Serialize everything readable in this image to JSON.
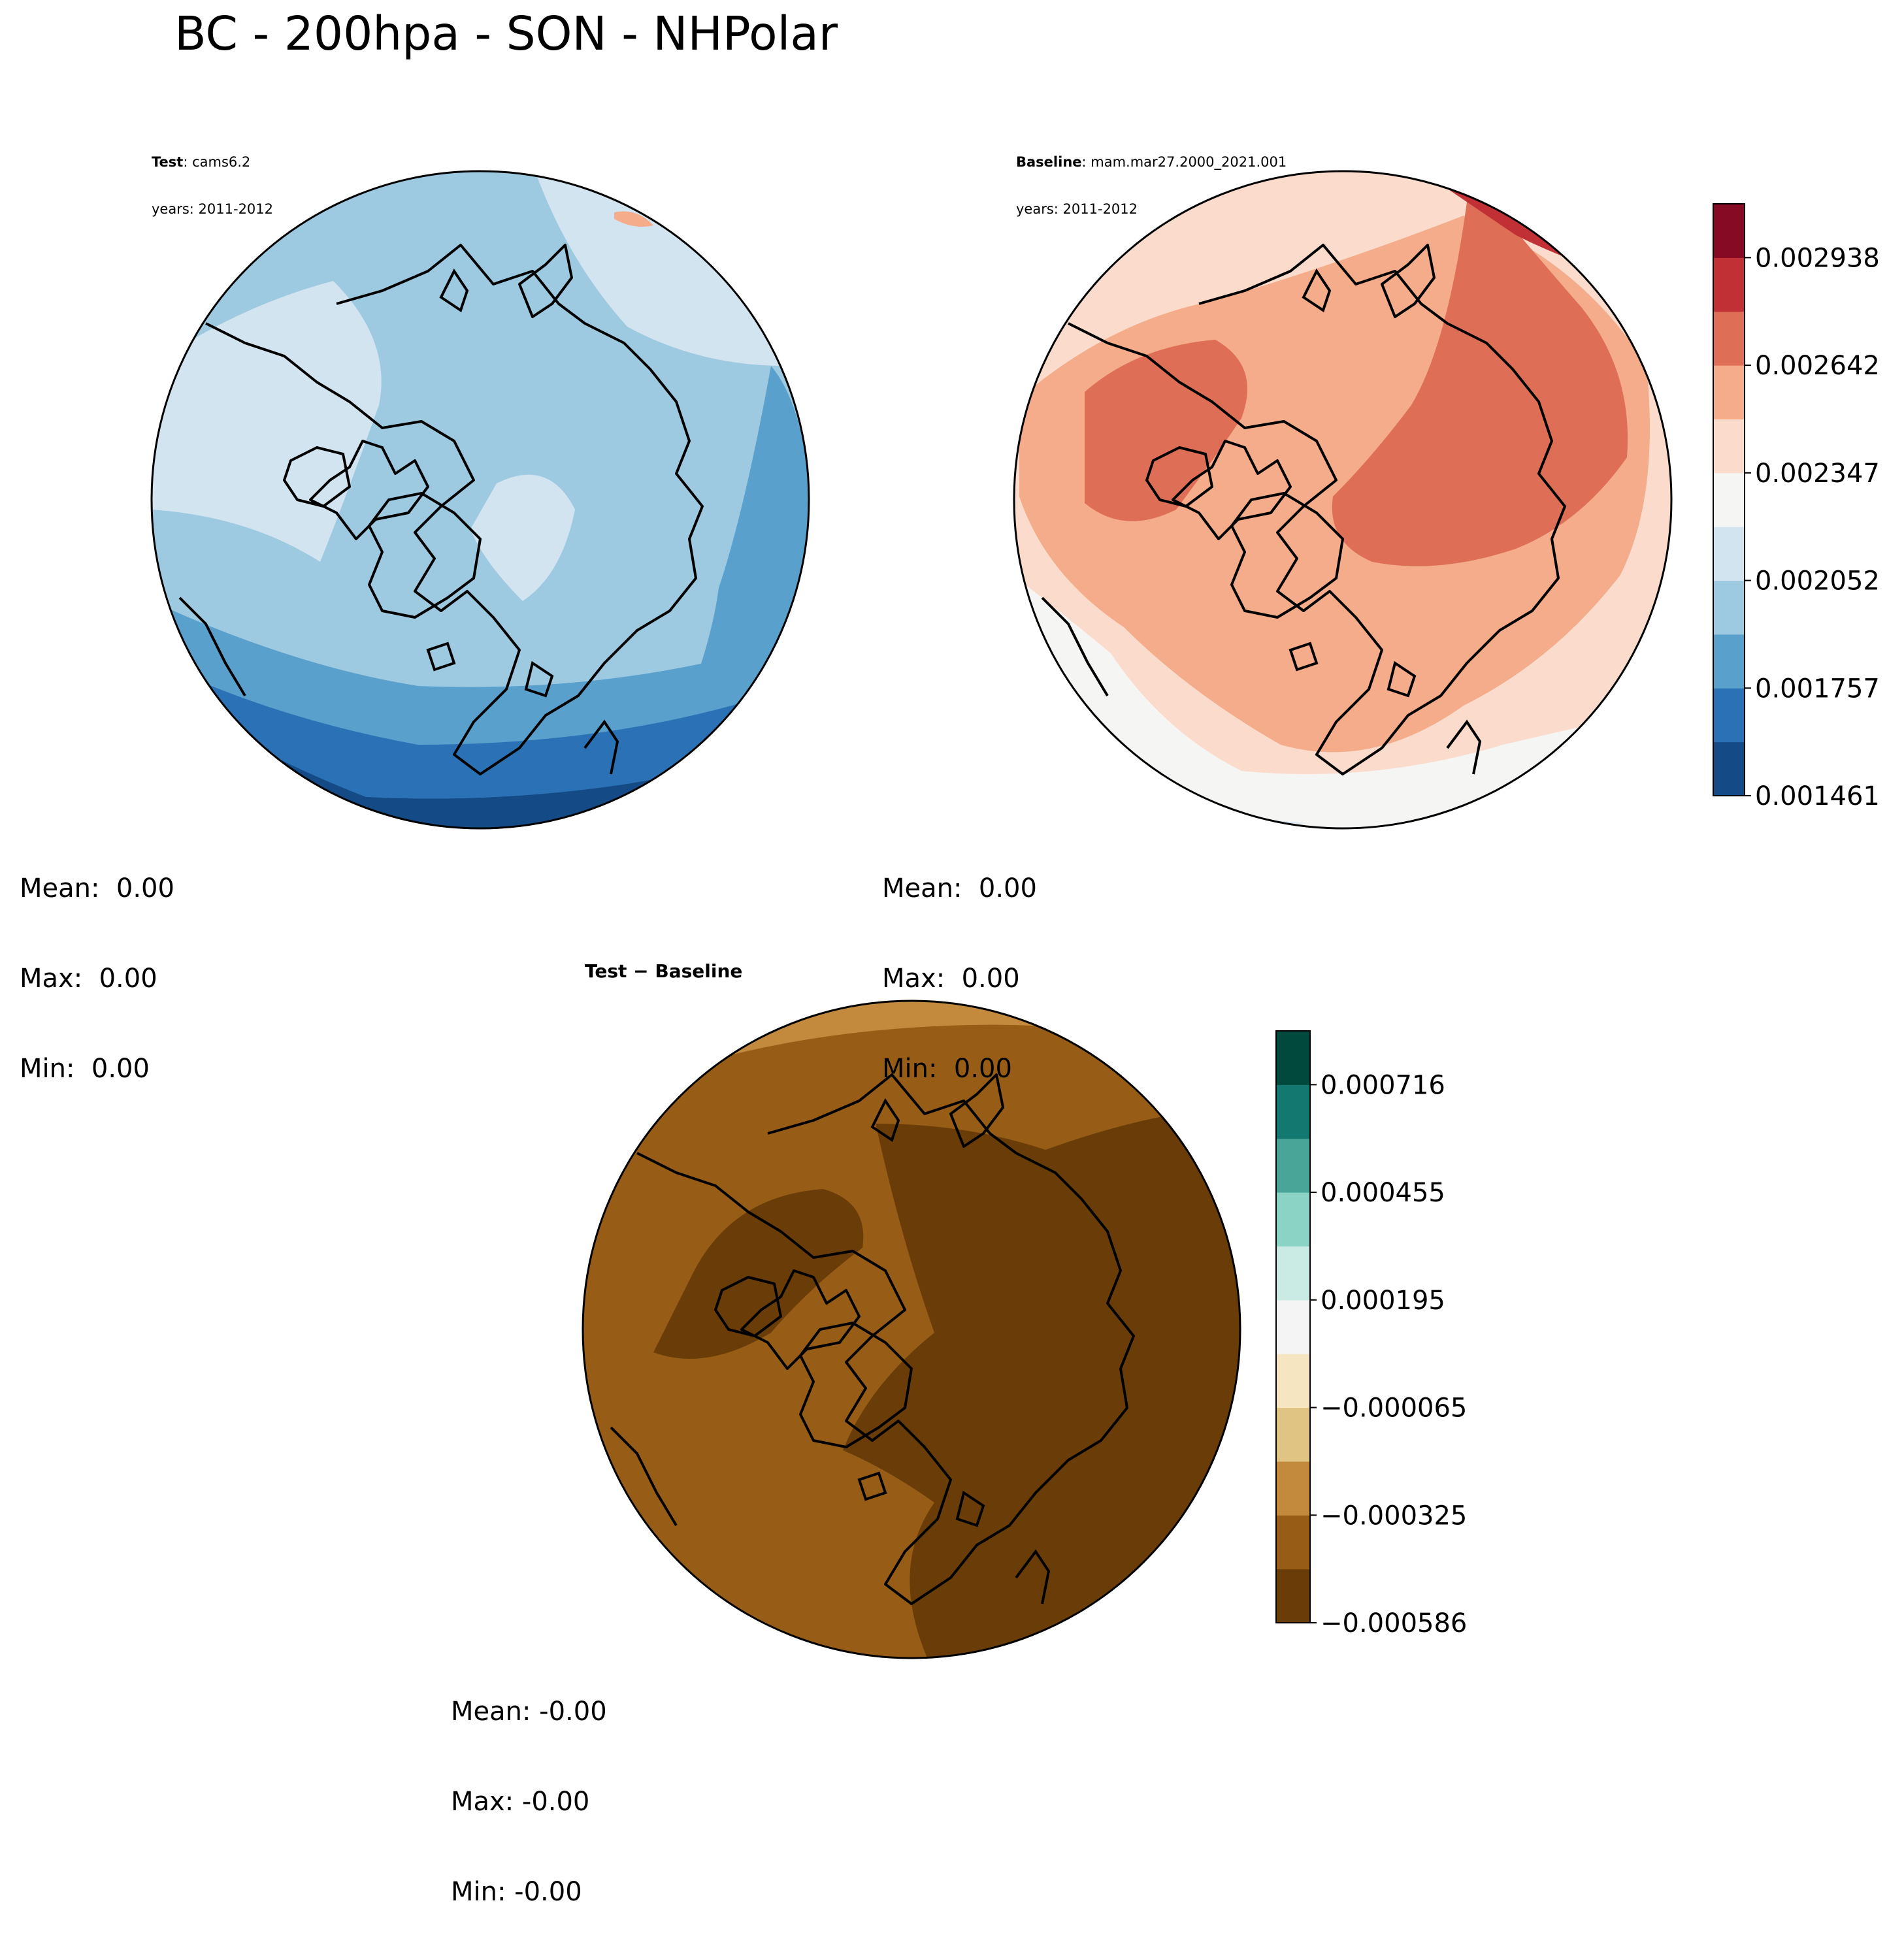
{
  "title": "BC - 200hpa - SON - NHPolar",
  "panels": {
    "test": {
      "label": "Test",
      "case": ": cams6.2",
      "years": "years: 2011-2012",
      "stats": {
        "mean": "Mean:  0.00",
        "max": "Max:  0.00",
        "min": "Min:  0.00"
      }
    },
    "baseline": {
      "label": "Baseline",
      "case": ": mam.mar27.2000_2021.001",
      "years": "years: 2011-2012",
      "stats": {
        "mean": "Mean:  0.00",
        "max": "Max:  0.00",
        "min": "Min:  0.00"
      }
    },
    "diff": {
      "label": "Test − Baseline",
      "stats": {
        "mean": "Mean: -0.00",
        "max": "Max: -0.00",
        "min": "Min: -0.00"
      }
    }
  },
  "colorbars": {
    "top": {
      "ticks": [
        "0.002938",
        "0.002642",
        "0.002347",
        "0.002052",
        "0.001757",
        "0.001461"
      ],
      "colors": [
        "#144a85",
        "#2a72b5",
        "#5aa0cd",
        "#9ecae1",
        "#d3e4f1",
        "#f5f5f4",
        "#fbdccc",
        "#f4ac8a",
        "#de6f56",
        "#c03034",
        "#870a24"
      ]
    },
    "diff": {
      "ticks": [
        "0.000716",
        "0.000455",
        "0.000195",
        "−0.000065",
        "−0.000325",
        "−0.000586"
      ],
      "colors": [
        "#6a3d08",
        "#975d16",
        "#c38a3e",
        "#dfc484",
        "#f5e6c1",
        "#f4f4f4",
        "#c9ebe4",
        "#8ad3c5",
        "#48a598",
        "#127870",
        "#01493d"
      ]
    }
  }
}
